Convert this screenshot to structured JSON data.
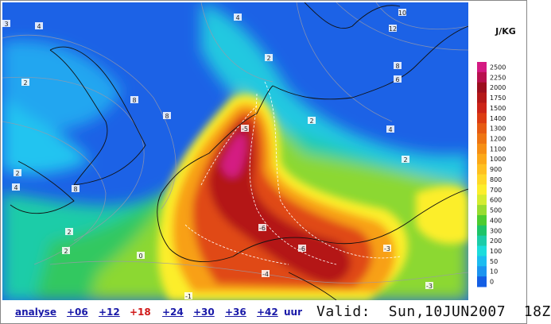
{
  "map": {
    "labels": [
      "3",
      "4",
      "4",
      "2",
      "8",
      "8",
      "2",
      "2",
      "4",
      "8",
      "2",
      "2",
      "0",
      "-1",
      "-4",
      "-6",
      "-6",
      "-3",
      "-3",
      "-5",
      "2",
      "4",
      "2",
      "12",
      "10",
      "8",
      "6"
    ]
  },
  "legend": {
    "unit": "J/KG",
    "levels": [
      {
        "label": "2500",
        "color": "#d41a82"
      },
      {
        "label": "2250",
        "color": "#b8104e"
      },
      {
        "label": "2000",
        "color": "#9c0e1e"
      },
      {
        "label": "1750",
        "color": "#b41818"
      },
      {
        "label": "1500",
        "color": "#cc2418"
      },
      {
        "label": "1400",
        "color": "#dc3c12"
      },
      {
        "label": "1300",
        "color": "#e65a12"
      },
      {
        "label": "1200",
        "color": "#ee7412"
      },
      {
        "label": "1100",
        "color": "#f68e14"
      },
      {
        "label": "1000",
        "color": "#fca818"
      },
      {
        "label": "900",
        "color": "#ffc020"
      },
      {
        "label": "800",
        "color": "#ffd828"
      },
      {
        "label": "700",
        "color": "#fcee2c"
      },
      {
        "label": "600",
        "color": "#d4ec30"
      },
      {
        "label": "500",
        "color": "#98dc30"
      },
      {
        "label": "400",
        "color": "#4ccc30"
      },
      {
        "label": "300",
        "color": "#1ec468"
      },
      {
        "label": "200",
        "color": "#1ccca8"
      },
      {
        "label": "100",
        "color": "#1cdcdc"
      },
      {
        "label": "50",
        "color": "#1cbcf0"
      },
      {
        "label": "10",
        "color": "#1c94f0"
      },
      {
        "label": "0",
        "color": "#145ee4"
      }
    ]
  },
  "nav": {
    "links": [
      {
        "label": "analyse",
        "current": false
      },
      {
        "label": "+06",
        "current": false
      },
      {
        "label": "+12",
        "current": false
      },
      {
        "label": "+18",
        "current": true
      },
      {
        "label": "+24",
        "current": false
      },
      {
        "label": "+30",
        "current": false
      },
      {
        "label": "+36",
        "current": false
      },
      {
        "label": "+42",
        "current": false
      }
    ],
    "unit": "uur",
    "valid": "Valid:  Sun,10JUN2007  18Z"
  }
}
